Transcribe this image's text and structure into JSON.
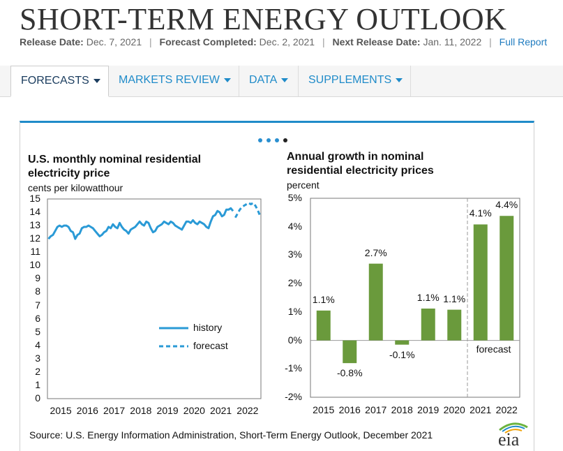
{
  "header": {
    "title": "SHORT-TERM ENERGY OUTLOOK",
    "release_label": "Release Date:",
    "release_value": "Dec. 7, 2021",
    "forecast_label": "Forecast Completed:",
    "forecast_value": "Dec. 2, 2021",
    "next_label": "Next Release Date:",
    "next_value": "Jan. 11, 2022",
    "full_report": "Full Report"
  },
  "nav": {
    "tabs": [
      {
        "label": "FORECASTS",
        "active": true
      },
      {
        "label": "MARKETS REVIEW",
        "active": false
      },
      {
        "label": "DATA",
        "active": false
      },
      {
        "label": "SUPPLEMENTS",
        "active": false
      }
    ]
  },
  "carousel": {
    "total": 4,
    "active_index": 3
  },
  "chart_data": [
    {
      "type": "line",
      "title": "U.S. monthly nominal residential electricity price",
      "ylabel": "cents per kilowatthour",
      "ylim": [
        0,
        15
      ],
      "yticks": [
        "0",
        "1",
        "2",
        "3",
        "4",
        "5",
        "6",
        "7",
        "8",
        "9",
        "10",
        "11",
        "12",
        "13",
        "14",
        "15"
      ],
      "xticks": [
        "2015",
        "2016",
        "2017",
        "2018",
        "2019",
        "2020",
        "2021",
        "2022"
      ],
      "legend": {
        "history": "history",
        "forecast": "forecast"
      },
      "series": [
        {
          "name": "history",
          "x_start": 2015.0,
          "step": 0.0833,
          "values": [
            12.0,
            12.2,
            12.3,
            12.6,
            12.9,
            13.0,
            12.9,
            13.0,
            13.0,
            12.9,
            12.6,
            12.5,
            12.0,
            12.3,
            12.4,
            12.8,
            12.9,
            12.9,
            13.0,
            12.9,
            12.8,
            12.6,
            12.4,
            12.2,
            12.3,
            12.5,
            12.6,
            12.9,
            12.8,
            13.1,
            12.9,
            12.8,
            13.2,
            12.9,
            12.7,
            12.6,
            12.4,
            12.7,
            12.8,
            12.9,
            13.1,
            13.3,
            13.1,
            13.0,
            13.3,
            13.2,
            12.8,
            12.5,
            12.6,
            12.9,
            13.0,
            13.1,
            13.3,
            13.2,
            13.1,
            13.3,
            13.2,
            13.0,
            12.9,
            12.8,
            12.7,
            13.0,
            13.3,
            13.3,
            13.2,
            13.4,
            13.2,
            13.1,
            13.3,
            13.2,
            13.1,
            12.9,
            12.8,
            13.3,
            13.7,
            13.8,
            14.1,
            14.0,
            13.7,
            13.8,
            14.2,
            14.2,
            14.3,
            14.1
          ]
        },
        {
          "name": "forecast",
          "x_start": 2022.0,
          "step": 0.0833,
          "values": [
            13.6,
            13.9,
            14.2,
            14.4,
            14.5,
            14.6,
            14.7,
            14.6,
            14.7,
            14.5,
            14.2,
            13.8
          ]
        }
      ]
    },
    {
      "type": "bar",
      "title": "Annual growth in nominal residential electricity prices",
      "ylabel": "percent",
      "ylim": [
        -2,
        5
      ],
      "yticks": [
        "-2%",
        "-1%",
        "0%",
        "1%",
        "2%",
        "3%",
        "4%",
        "5%"
      ],
      "categories": [
        "2015",
        "2016",
        "2017",
        "2018",
        "2019",
        "2020",
        "2021",
        "2022"
      ],
      "values": [
        1.05,
        -0.8,
        2.7,
        -0.15,
        1.12,
        1.08,
        4.08,
        4.38
      ],
      "data_labels": [
        "1.1%",
        "-0.8%",
        "2.7%",
        "-0.1%",
        "1.1%",
        "1.1%",
        "4.1%",
        "4.4%"
      ],
      "forecast_label": "forecast",
      "color": "#6a9a3c"
    }
  ],
  "source": "Source: U.S. Energy Information Administration, Short-Term Energy Outlook, December 2021",
  "logo_text": "eia"
}
